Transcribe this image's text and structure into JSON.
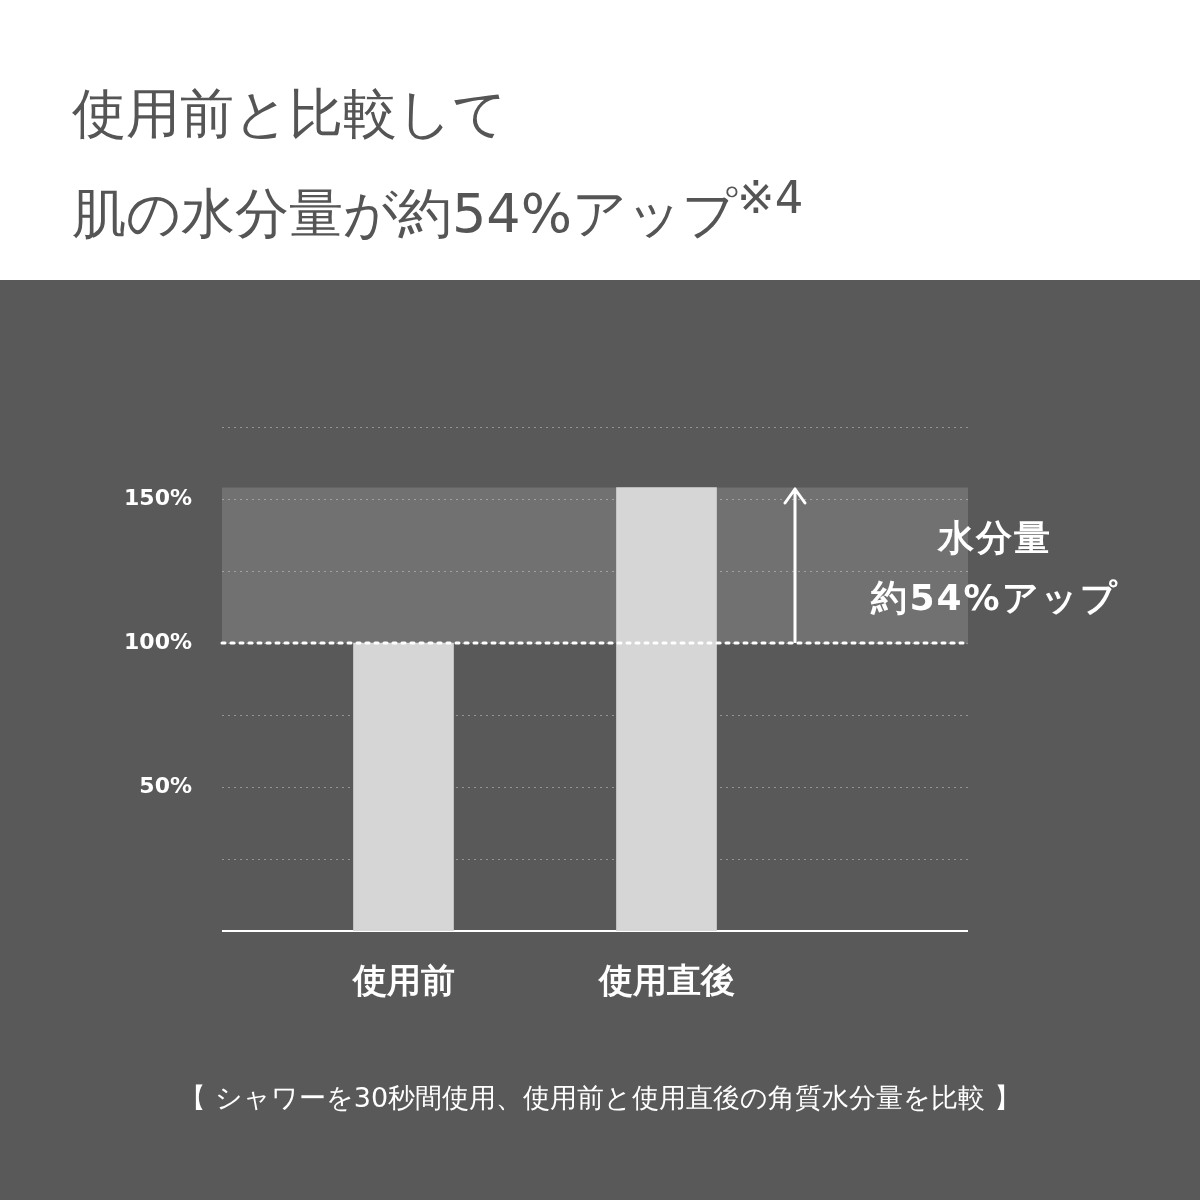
{
  "chart_data": {
    "type": "bar",
    "title": "使用前と比較して",
    "subtitle": "肌の水分量が約54%アップ$^{※4}$",
    "categories": [
      "使用前",
      "使用直後"
    ],
    "values": [
      100,
      154
    ],
    "color": "#d6d6d6",
    "ylim": [
      0,
      175
    ],
    "yticks": [
      {
        "value": 25,
        "label": null
      },
      {
        "value": 50,
        "label": "50%"
      },
      {
        "value": 75,
        "label": null
      },
      {
        "value": 100,
        "label": "100%"
      },
      {
        "value": 125,
        "label": null
      },
      {
        "value": 150,
        "label": "150%"
      },
      {
        "value": 175,
        "label": null
      }
    ],
    "grid": "y",
    "legend": false,
    "bands": [
      {
        "axis": "y",
        "from": 100,
        "to": 154,
        "color": "#717171"
      }
    ],
    "ref_lines": [
      {
        "axis": "y",
        "value": 100,
        "color": "#ffffff",
        "line_style": "dotted"
      }
    ],
    "annotations": [
      "水分量",
      "約54%アップ",
      "【 シャワーを30秒間使用、使用前と使用直後の角質水分量を比較 】"
    ]
  }
}
